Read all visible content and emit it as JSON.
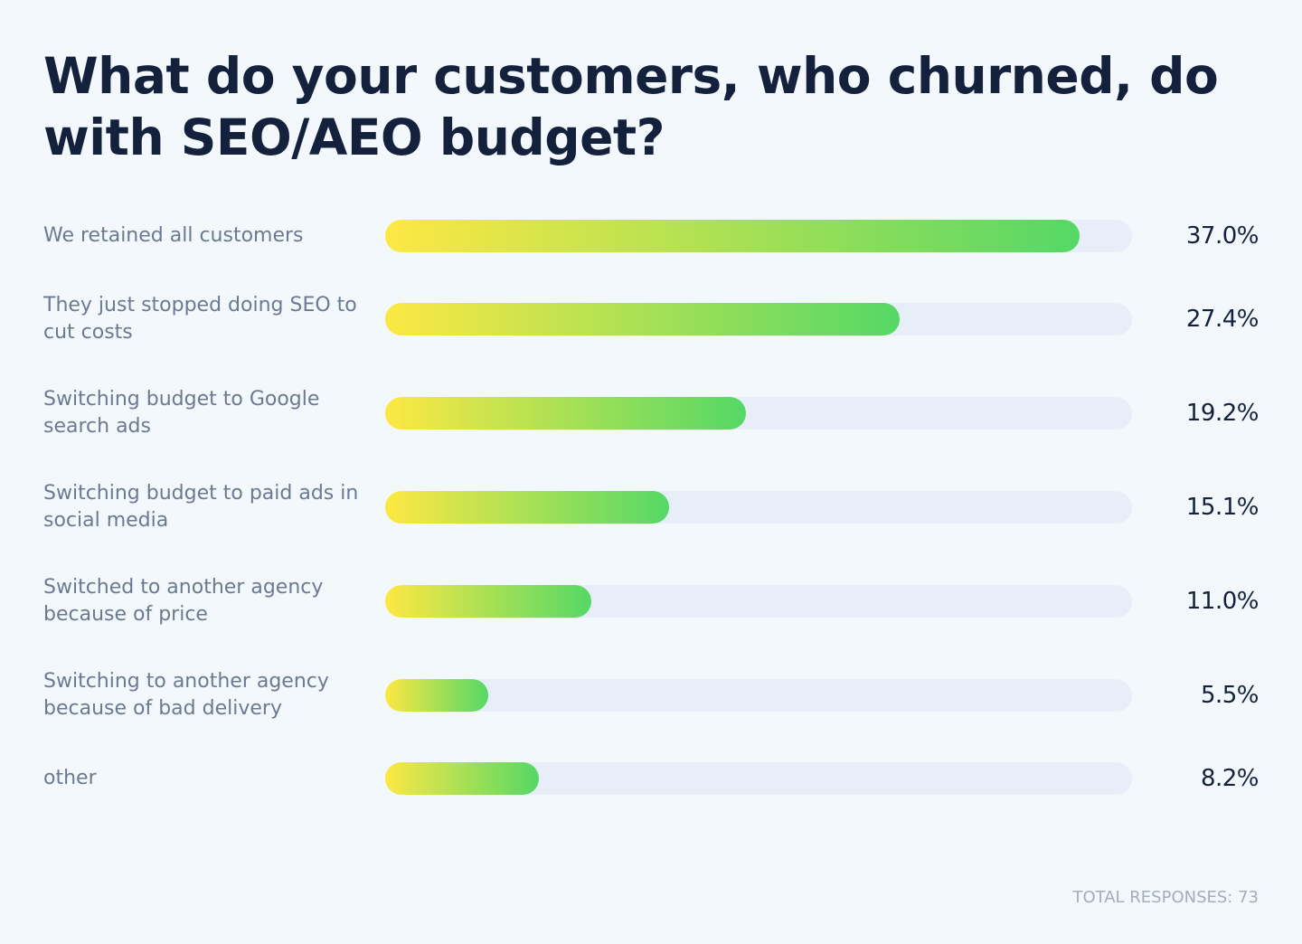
{
  "chart_data": {
    "type": "bar",
    "orientation": "horizontal",
    "title": "What do your customers, who churned, do with SEO/AEO budget?",
    "categories": [
      "We retained all customers",
      "They just stopped doing SEO to cut costs",
      "Switching budget to Google search ads",
      "Switching budget to paid ads in social media",
      "Switched to another agency because of price",
      "Switching to another agency because of bad delivery",
      "other"
    ],
    "values": [
      37.0,
      27.4,
      19.2,
      15.1,
      11.0,
      5.5,
      8.2
    ],
    "value_labels": [
      "37.0%",
      "27.4%",
      "19.2%",
      "15.1%",
      "11.0%",
      "5.5%",
      "8.2%"
    ],
    "color_start": "#fde843",
    "color_end": "#55d866",
    "footnote": "TOTAL RESPONSES: 73"
  }
}
